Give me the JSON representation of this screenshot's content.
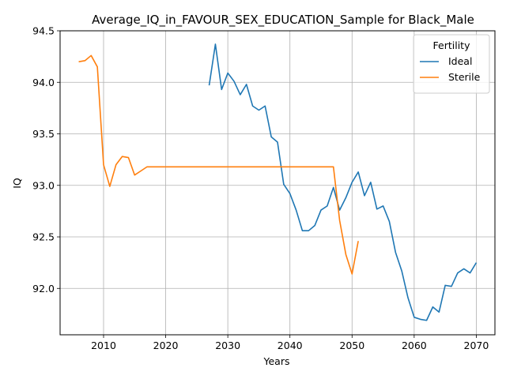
{
  "chart_data": {
    "type": "line",
    "title": "Average_IQ_in_FAVOUR_SEX_EDUCATION_Sample for Black_Male",
    "xlabel": "Years",
    "ylabel": "IQ",
    "xlim": [
      2003,
      2073
    ],
    "ylim": [
      91.55,
      94.5
    ],
    "xticks": [
      2010,
      2020,
      2030,
      2040,
      2050,
      2060,
      2070
    ],
    "yticks": [
      92.0,
      92.5,
      93.0,
      93.5,
      94.0,
      94.5
    ],
    "ytick_labels": [
      "92.0",
      "92.5",
      "93.0",
      "93.5",
      "94.0",
      "94.5"
    ],
    "grid": true,
    "legend": {
      "title": "Fertility",
      "placement": "top-right"
    },
    "series": [
      {
        "name": "Ideal",
        "color": "#1f77b4",
        "x": [
          2027,
          2028,
          2029,
          2030,
          2031,
          2032,
          2033,
          2034,
          2035,
          2036,
          2037,
          2038,
          2039,
          2040,
          2041,
          2042,
          2043,
          2044,
          2045,
          2046,
          2047,
          2048,
          2049,
          2050,
          2051,
          2052,
          2053,
          2054,
          2055,
          2056,
          2057,
          2058,
          2059,
          2060,
          2061,
          2062,
          2063,
          2064,
          2065,
          2066,
          2067,
          2068,
          2069,
          2070
        ],
        "y": [
          93.97,
          94.37,
          93.93,
          94.09,
          94.01,
          93.88,
          93.98,
          93.77,
          93.73,
          93.77,
          93.47,
          93.42,
          93.01,
          92.92,
          92.76,
          92.56,
          92.56,
          92.61,
          92.76,
          92.8,
          92.98,
          92.76,
          92.88,
          93.03,
          93.13,
          92.9,
          93.03,
          92.77,
          92.8,
          92.65,
          92.35,
          92.17,
          91.91,
          91.72,
          91.7,
          91.69,
          91.82,
          91.77,
          92.03,
          92.02,
          92.15,
          92.19,
          92.15,
          92.25
        ]
      },
      {
        "name": "Sterile",
        "color": "#ff7f0e",
        "x": [
          2006,
          2007,
          2008,
          2009,
          2010,
          2011,
          2012,
          2013,
          2014,
          2015,
          2016,
          2017,
          2018,
          2019,
          2020,
          2021,
          2022,
          2023,
          2024,
          2025,
          2026,
          2027,
          2028,
          2029,
          2030,
          2031,
          2032,
          2033,
          2034,
          2035,
          2036,
          2037,
          2038,
          2039,
          2040,
          2041,
          2042,
          2043,
          2044,
          2045,
          2046,
          2047,
          2048,
          2049,
          2050,
          2051
        ],
        "y": [
          94.2,
          94.21,
          94.26,
          94.15,
          93.2,
          92.99,
          93.2,
          93.28,
          93.27,
          93.1,
          93.14,
          93.18,
          93.18,
          93.18,
          93.18,
          93.18,
          93.18,
          93.18,
          93.18,
          93.18,
          93.18,
          93.18,
          93.18,
          93.18,
          93.18,
          93.18,
          93.18,
          93.18,
          93.18,
          93.18,
          93.18,
          93.18,
          93.18,
          93.18,
          93.18,
          93.18,
          93.18,
          93.18,
          93.18,
          93.18,
          93.18,
          93.18,
          92.66,
          92.33,
          92.14,
          92.46
        ]
      }
    ]
  }
}
